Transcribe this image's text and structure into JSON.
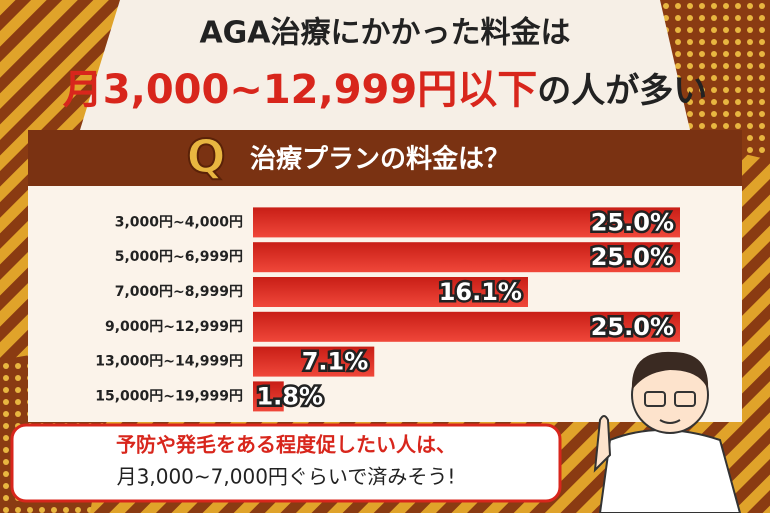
{
  "chart_data": {
    "type": "bar",
    "orientation": "horizontal",
    "title": "AGA治療にかかった料金は",
    "subtitle_highlight": "月3,000~12,999円以下",
    "subtitle_rest": "の人が多い",
    "question_mark": "Q",
    "question": "治療プランの料金は？",
    "categories": [
      "3,000円~4,000円",
      "5,000円~6,999円",
      "7,000円~8,999円",
      "9,000円~12,999円",
      "13,000円~14,999円",
      "15,000円~19,999円"
    ],
    "values": [
      25.0,
      25.0,
      16.1,
      25.0,
      7.1,
      1.8
    ],
    "value_labels": [
      "25.0%",
      "25.0%",
      "16.1%",
      "25.0%",
      "7.1%",
      "1.8%"
    ],
    "color": "#e03a2c",
    "callout_highlight": "予防や発毛をある程度促したい人は、",
    "callout_rest": "月3,000~7,000円ぐらいで済みそう!"
  }
}
